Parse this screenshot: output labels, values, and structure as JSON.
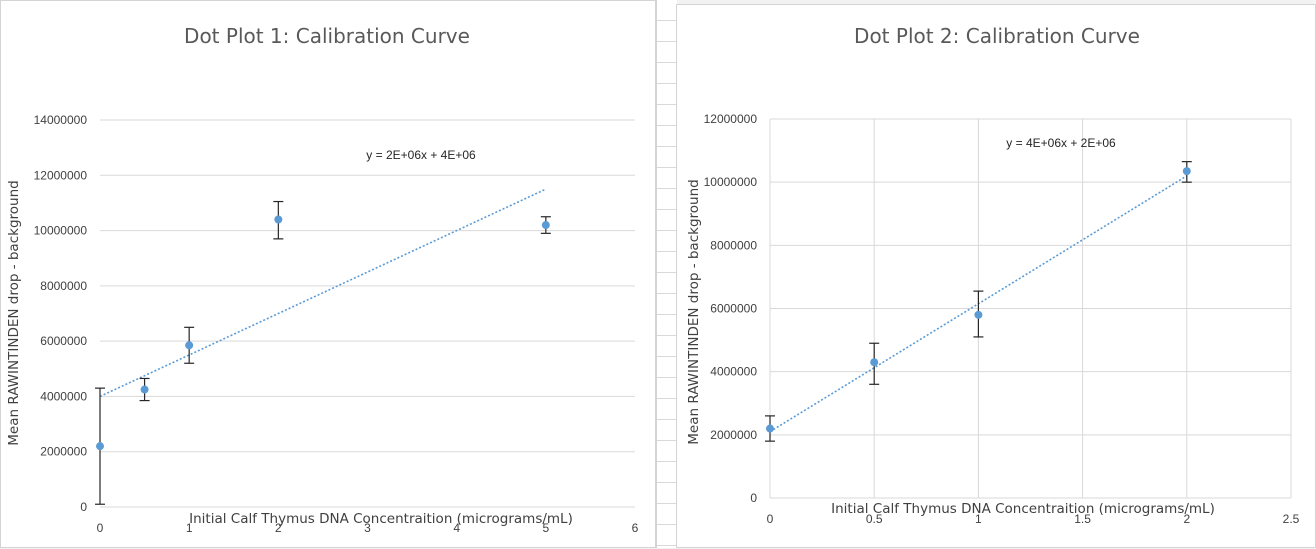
{
  "chart_data": [
    {
      "type": "scatter",
      "title": "Dot Plot 1: Calibration Curve",
      "xlabel": "Initial Calf Thymus DNA Concentraition (micrograms/mL)",
      "ylabel": "Mean RAWINTINDEN drop - background",
      "xlim": [
        0,
        6
      ],
      "ylim": [
        0,
        14000000
      ],
      "x_ticks": [
        "0",
        "1",
        "2",
        "3",
        "4",
        "5",
        "6"
      ],
      "y_ticks": [
        "0",
        "2000000",
        "4000000",
        "6000000",
        "8000000",
        "10000000",
        "12000000",
        "14000000"
      ],
      "grid": "horizontal",
      "series": [
        {
          "points": [
            {
              "x": 0,
              "y": 2200000,
              "err_low": 2100000,
              "err_high": 2100000
            },
            {
              "x": 0.5,
              "y": 4250000,
              "err_low": 400000,
              "err_high": 400000
            },
            {
              "x": 1,
              "y": 5850000,
              "err_low": 650000,
              "err_high": 650000
            },
            {
              "x": 2,
              "y": 10400000,
              "err_low": 700000,
              "err_high": 650000
            },
            {
              "x": 5,
              "y": 10200000,
              "err_low": 300000,
              "err_high": 300000
            }
          ]
        }
      ],
      "trendline": {
        "label": "y = 2E+06x + 4E+06",
        "x_start": 0,
        "x_end": 5,
        "y_start": 4000000,
        "y_end": 11500000
      },
      "colors": {
        "point": "#5b9bd5",
        "trend": "#5b9bd5",
        "error": "#262626",
        "grid": "#d9d9d9"
      }
    },
    {
      "type": "scatter",
      "title": "Dot Plot 2: Calibration Curve",
      "xlabel": "Initial Calf Thymus DNA Concentraition (micrograms/mL)",
      "ylabel": "Mean RAWINTINDEN drop - background",
      "xlim": [
        0,
        2.5
      ],
      "ylim": [
        0,
        12000000
      ],
      "x_ticks": [
        "0",
        "0.5",
        "1",
        "1.5",
        "2",
        "2.5"
      ],
      "y_ticks": [
        "0",
        "2000000",
        "4000000",
        "6000000",
        "8000000",
        "10000000",
        "12000000"
      ],
      "grid": "both",
      "series": [
        {
          "points": [
            {
              "x": 0,
              "y": 2200000,
              "err_low": 400000,
              "err_high": 400000
            },
            {
              "x": 0.5,
              "y": 4300000,
              "err_low": 700000,
              "err_high": 600000
            },
            {
              "x": 1,
              "y": 5800000,
              "err_low": 700000,
              "err_high": 750000
            },
            {
              "x": 2,
              "y": 10350000,
              "err_low": 350000,
              "err_high": 300000
            }
          ]
        }
      ],
      "trendline": {
        "label": "y = 4E+06x + 2E+06",
        "x_start": 0,
        "x_end": 2,
        "y_start": 2100000,
        "y_end": 10200000
      },
      "colors": {
        "point": "#5b9bd5",
        "trend": "#5b9bd5",
        "error": "#262626",
        "grid": "#d9d9d9"
      }
    }
  ]
}
